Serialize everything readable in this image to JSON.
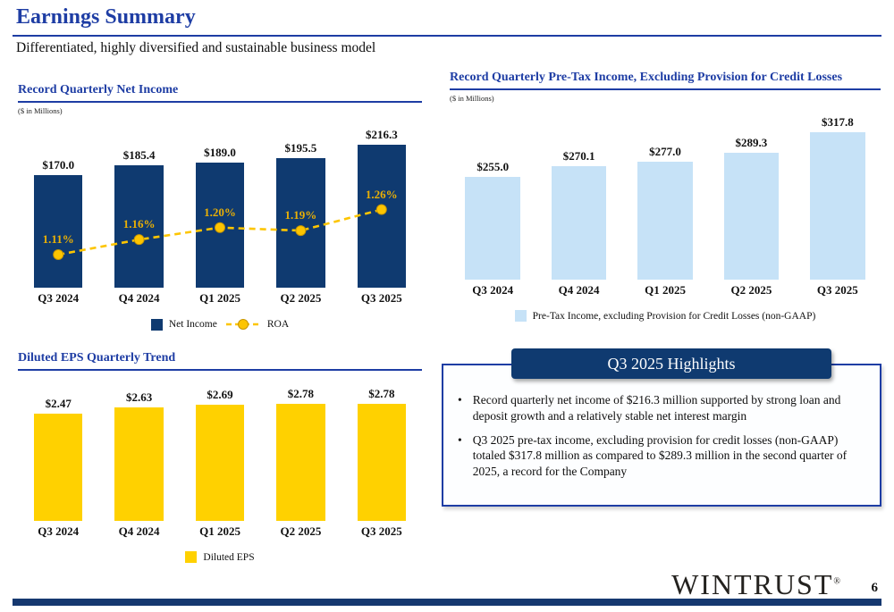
{
  "slide": {
    "title": "Earnings Summary",
    "subtitle": "Differentiated, highly diversified and sustainable business model",
    "page_number": "6",
    "logo_text": "WINTRUST",
    "logo_reg_mark": "®",
    "accent_color": "#1e3da4",
    "navy_color": "#0f3a70",
    "gold_color": "#ffd100",
    "light_blue_color": "#c6e2f7"
  },
  "chart_data": [
    {
      "type": "bar",
      "title": "Record Quarterly Net Income",
      "units_note": "($ in Millions)",
      "categories": [
        "Q3 2024",
        "Q4 2024",
        "Q1 2025",
        "Q2 2025",
        "Q3 2025"
      ],
      "series": [
        {
          "name": "Net Income",
          "kind": "bar",
          "color": "#0f3a70",
          "values": [
            170.0,
            185.4,
            189.0,
            195.5,
            216.3
          ],
          "labels": [
            "$170.0",
            "$185.4",
            "$189.0",
            "$195.5",
            "$216.3"
          ]
        },
        {
          "name": "ROA",
          "kind": "line",
          "color": "#fdc500",
          "axis_range": [
            1.0,
            1.55
          ],
          "values": [
            1.11,
            1.16,
            1.2,
            1.19,
            1.26
          ],
          "labels": [
            "1.11%",
            "1.16%",
            "1.20%",
            "1.19%",
            "1.26%"
          ]
        }
      ],
      "ylim": [
        0,
        250
      ],
      "grid": false,
      "legend": [
        "Net Income",
        "ROA"
      ],
      "legend_position": "bottom"
    },
    {
      "type": "bar",
      "title": "Record Quarterly Pre-Tax Income, Excluding Provision for Credit Losses",
      "units_note": "($ in Millions)",
      "categories": [
        "Q3 2024",
        "Q4 2024",
        "Q1 2025",
        "Q2 2025",
        "Q3 2025"
      ],
      "series": [
        {
          "name": "Pre-Tax Income, excluding Provision for Credit Losses (non-GAAP)",
          "kind": "bar",
          "color": "#c6e2f7",
          "values": [
            255.0,
            270.1,
            277.0,
            289.3,
            317.8
          ],
          "labels": [
            "$255.0",
            "$270.1",
            "$277.0",
            "$289.3",
            "$317.8"
          ]
        }
      ],
      "ylim": [
        110,
        350
      ],
      "grid": false,
      "legend": [
        "Pre-Tax Income, excluding Provision for Credit Losses (non-GAAP)"
      ],
      "legend_position": "bottom"
    },
    {
      "type": "bar",
      "title": "Diluted EPS Quarterly Trend",
      "units_note": "",
      "categories": [
        "Q3 2024",
        "Q4 2024",
        "Q1 2025",
        "Q2 2025",
        "Q3 2025"
      ],
      "series": [
        {
          "name": "Diluted EPS",
          "kind": "bar",
          "color": "#ffd100",
          "values": [
            2.47,
            2.63,
            2.69,
            2.78,
            2.78
          ],
          "labels": [
            "$2.47",
            "$2.63",
            "$2.69",
            "$2.78",
            "$2.78"
          ]
        }
      ],
      "ylim": [
        0,
        3.1
      ],
      "grid": false,
      "legend": [
        "Diluted EPS"
      ],
      "legend_position": "bottom"
    }
  ],
  "highlights": {
    "header": "Q3 2025 Highlights",
    "bullets": [
      "Record quarterly net income of $216.3 million supported by strong loan and deposit growth and a relatively stable net interest margin",
      "Q3 2025 pre-tax income, excluding provision for credit losses (non-GAAP) totaled $317.8 million as compared to $289.3 million in the second quarter of 2025, a record for the Company"
    ]
  }
}
